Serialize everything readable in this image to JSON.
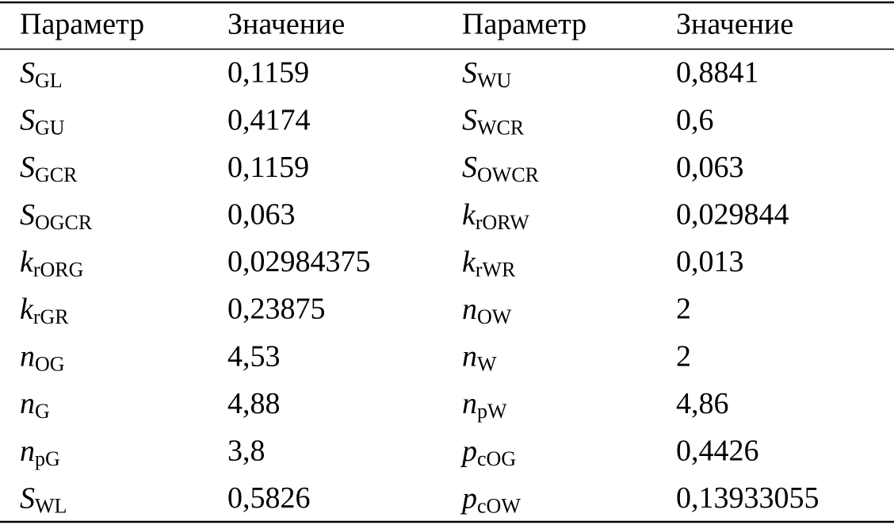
{
  "table": {
    "header": [
      "Параметр",
      "Значение",
      "Параметр",
      "Значение"
    ],
    "rows": [
      [
        {
          "symbol": "S",
          "sub": "GL"
        },
        "0,1159",
        {
          "symbol": "S",
          "sub": "WU"
        },
        "0,8841"
      ],
      [
        {
          "symbol": "S",
          "sub": "GU"
        },
        "0,4174",
        {
          "symbol": "S",
          "sub": "WCR"
        },
        "0,6"
      ],
      [
        {
          "symbol": "S",
          "sub": "GCR"
        },
        "0,1159",
        {
          "symbol": "S",
          "sub": "OWCR"
        },
        "0,063"
      ],
      [
        {
          "symbol": "S",
          "sub": "OGCR"
        },
        "0,063",
        {
          "symbol": "k",
          "sub": "rORW"
        },
        "0,029844"
      ],
      [
        {
          "symbol": "k",
          "sub": "rORG"
        },
        "0,02984375",
        {
          "symbol": "k",
          "sub": "rWR"
        },
        "0,013"
      ],
      [
        {
          "symbol": "k",
          "sub": "rGR"
        },
        "0,23875",
        {
          "symbol": "n",
          "sub": "OW"
        },
        "2"
      ],
      [
        {
          "symbol": "n",
          "sub": "OG"
        },
        "4,53",
        {
          "symbol": "n",
          "sub": "W"
        },
        "2"
      ],
      [
        {
          "symbol": "n",
          "sub": "G"
        },
        "4,88",
        {
          "symbol": "n",
          "sub": "pW"
        },
        "4,86"
      ],
      [
        {
          "symbol": "n",
          "sub": "pG"
        },
        "3,8",
        {
          "symbol": "p",
          "sub": "cOG"
        },
        "0,4426"
      ],
      [
        {
          "symbol": "S",
          "sub": "WL"
        },
        "0,5826",
        {
          "symbol": "p",
          "sub": "cOW"
        },
        "0,13933055"
      ]
    ]
  }
}
